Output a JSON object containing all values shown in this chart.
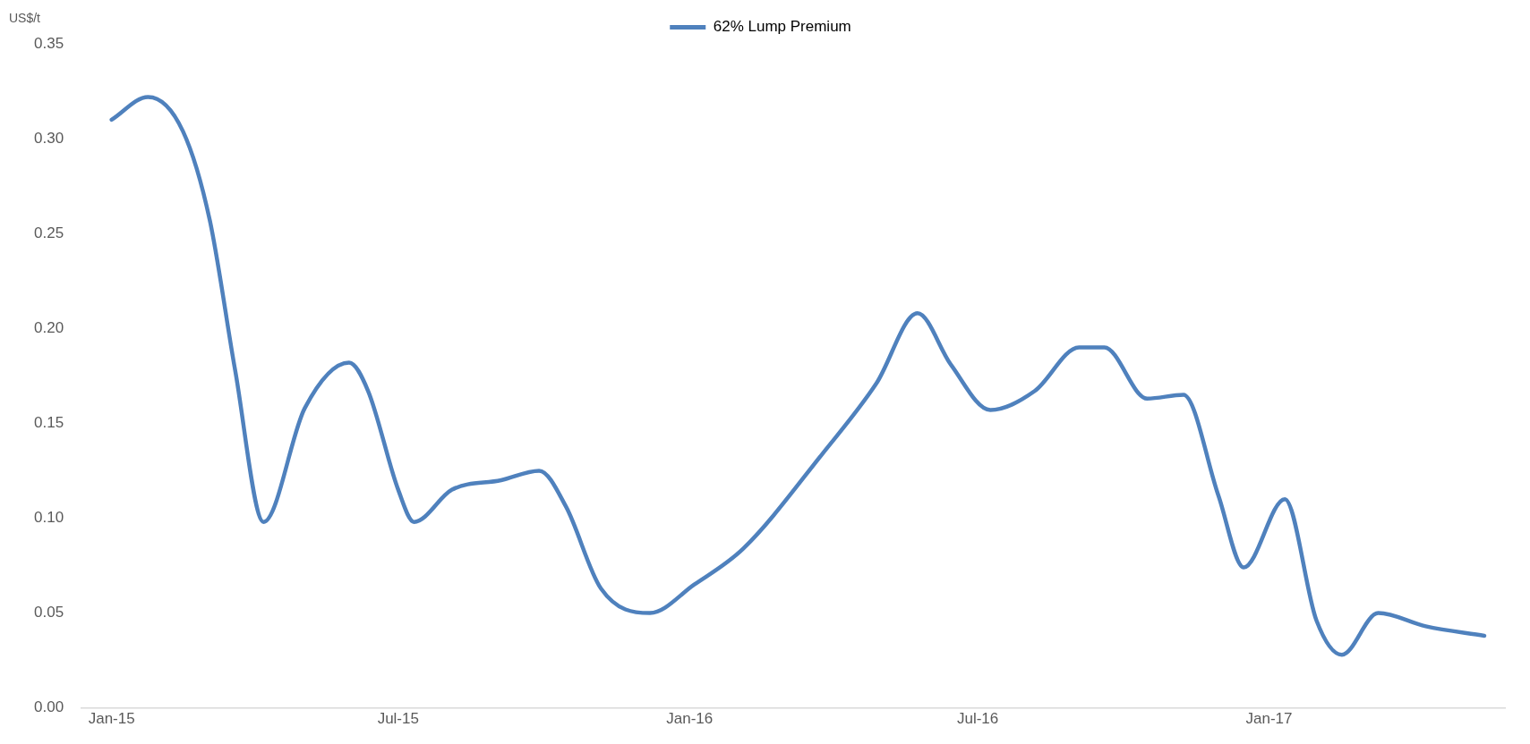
{
  "chart_data": {
    "type": "line",
    "ylabel": "US$/t",
    "legend": "top",
    "grid": false,
    "marker": "none",
    "line_style": "solid",
    "x": [
      "2015-01-01",
      "2015-01-24",
      "2015-02-15",
      "2015-03-04",
      "2015-03-20",
      "2015-04-07",
      "2015-05-03",
      "2015-05-31",
      "2015-06-12",
      "2015-07-01",
      "2015-07-11",
      "2015-08-04",
      "2015-09-04",
      "2015-09-28",
      "2015-10-15",
      "2015-11-06",
      "2015-12-07",
      "2016-01-04",
      "2016-02-04",
      "2016-03-25",
      "2016-04-28",
      "2016-05-24",
      "2016-06-14",
      "2016-07-09",
      "2016-08-06",
      "2016-09-03",
      "2016-09-19",
      "2016-10-16",
      "2016-11-08",
      "2016-11-30",
      "2016-12-16",
      "2017-01-11",
      "2017-01-31",
      "2017-02-16",
      "2017-03-11",
      "2017-04-10",
      "2017-05-17"
    ],
    "series": [
      {
        "name": "62% Lump Premium",
        "color": "#4f81bd",
        "values": [
          0.31,
          0.322,
          0.304,
          0.257,
          0.178,
          0.098,
          0.158,
          0.182,
          0.167,
          0.115,
          0.098,
          0.115,
          0.12,
          0.125,
          0.106,
          0.063,
          0.05,
          0.065,
          0.084,
          0.134,
          0.171,
          0.208,
          0.181,
          0.157,
          0.167,
          0.19,
          0.19,
          0.163,
          0.165,
          0.112,
          0.074,
          0.11,
          0.046,
          0.028,
          0.05,
          0.043,
          0.038
        ]
      }
    ],
    "xlim": [
      "2014-12-13",
      "2017-05-30"
    ],
    "xticks": [
      {
        "value": "2015-01-01",
        "label": "Jan-15"
      },
      {
        "value": "2015-07-01",
        "label": "Jul-15"
      },
      {
        "value": "2016-01-01",
        "label": "Jan-16"
      },
      {
        "value": "2016-07-01",
        "label": "Jul-16"
      },
      {
        "value": "2017-01-01",
        "label": "Jan-17"
      }
    ],
    "ylim": [
      0,
      0.35
    ],
    "yticks": [
      {
        "value": 0,
        "label": "0.00"
      },
      {
        "value": 0.05,
        "label": "0.05"
      },
      {
        "value": 0.1,
        "label": "0.10"
      },
      {
        "value": 0.15,
        "label": "0.15"
      },
      {
        "value": 0.2,
        "label": "0.20"
      },
      {
        "value": 0.25,
        "label": "0.25"
      },
      {
        "value": 0.3,
        "label": "0.30"
      },
      {
        "value": 0.35,
        "label": "0.35"
      }
    ]
  }
}
